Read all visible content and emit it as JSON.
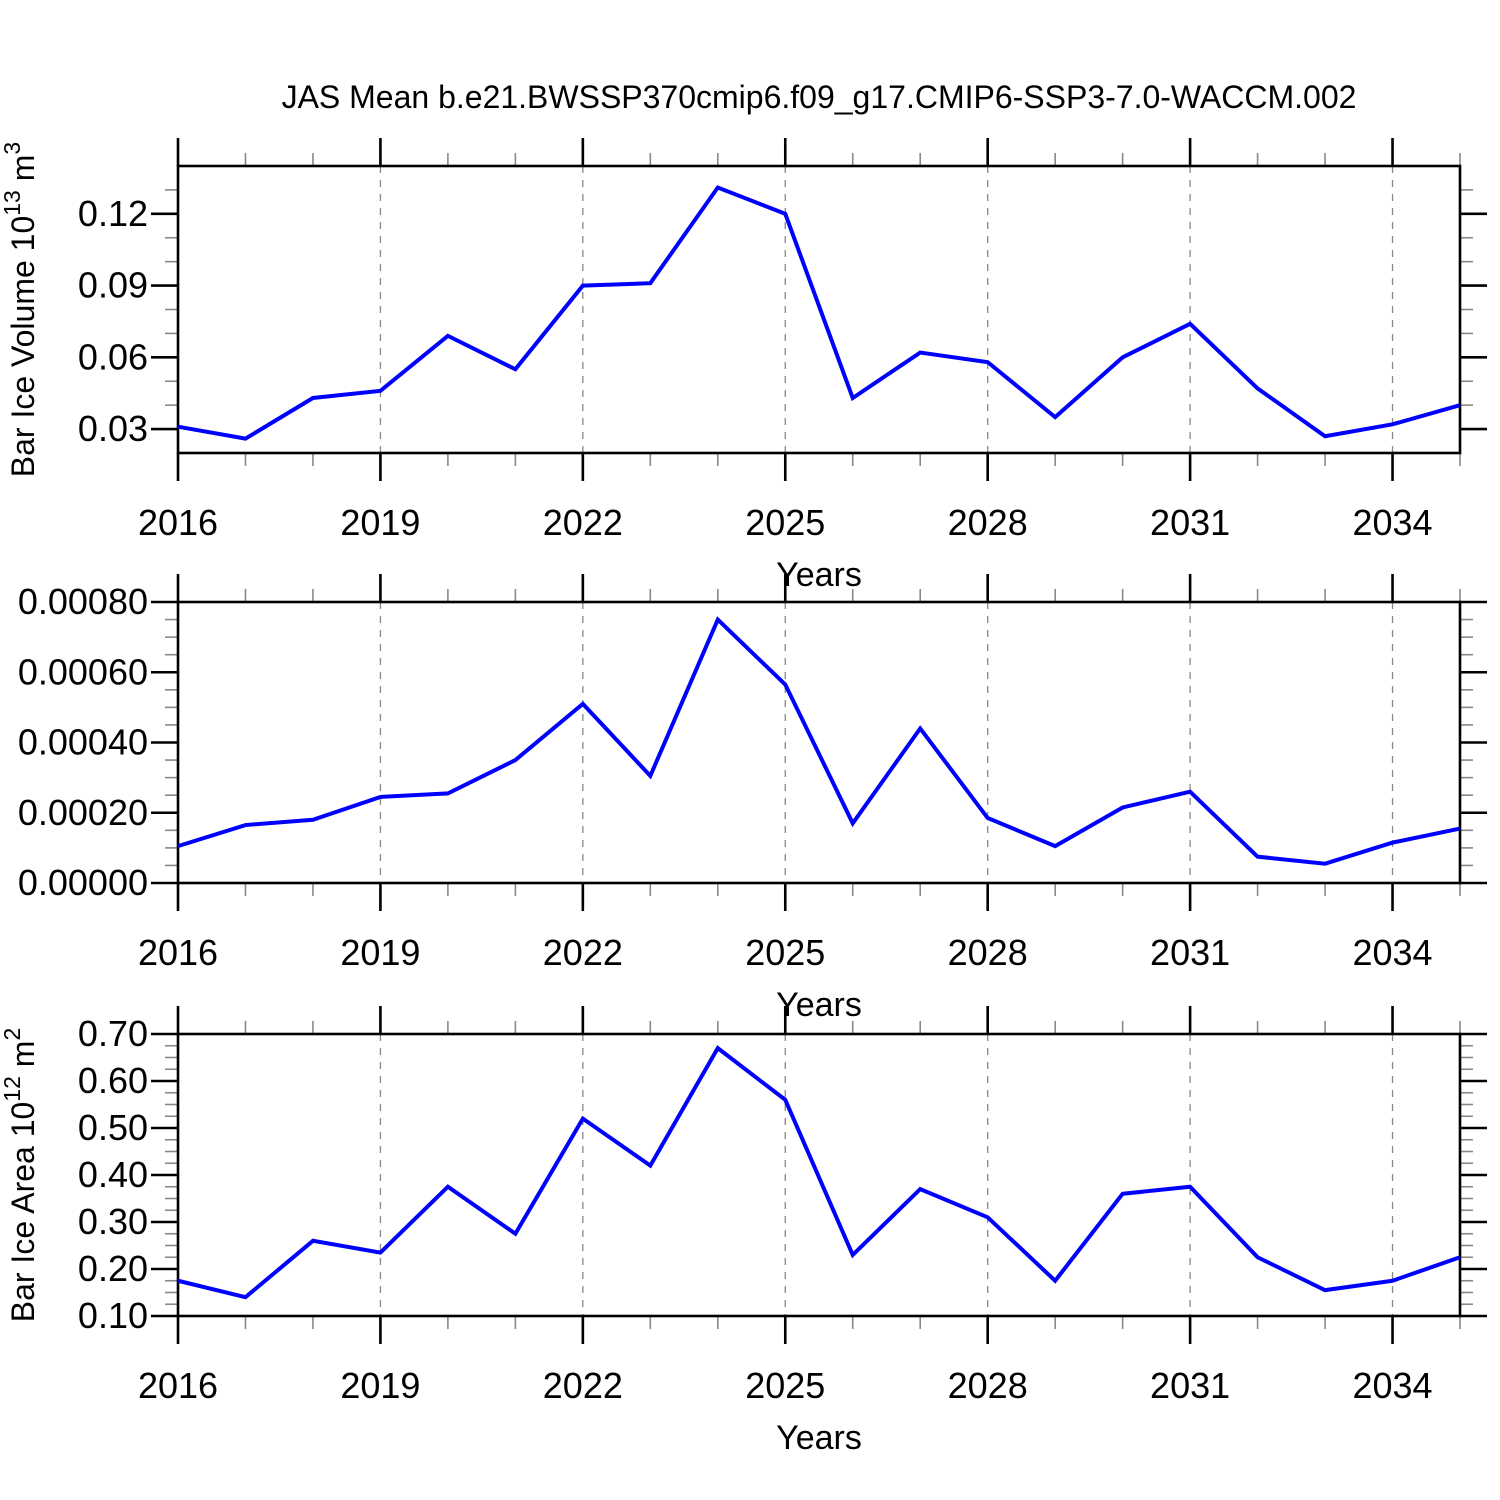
{
  "page_title": "JAS Mean b.e21.BWSSP370cmip6.f09_g17.CMIP6-SSP3-7.0-WACCM.002",
  "line_color": "#0000ff",
  "axis_color": "#000000",
  "minor_tick_color": "#888888",
  "grid_color": "#888888",
  "background_color": "#ffffff",
  "chart_data": [
    {
      "type": "line",
      "title": "",
      "ylabel": "Bar Ice Volume 10¹³ m³",
      "ylabel_parts": [
        [
          "Bar Ice Volume 10",
          false
        ],
        [
          "13",
          true
        ],
        [
          " m",
          false
        ],
        [
          "3",
          true
        ]
      ],
      "xlabel": "Years",
      "x": [
        2016,
        2017,
        2018,
        2019,
        2020,
        2021,
        2022,
        2023,
        2024,
        2025,
        2026,
        2027,
        2028,
        2029,
        2030,
        2031,
        2032,
        2033,
        2034,
        2035
      ],
      "values": [
        0.031,
        0.026,
        0.043,
        0.046,
        0.069,
        0.055,
        0.09,
        0.091,
        0.131,
        0.12,
        0.043,
        0.062,
        0.058,
        0.035,
        0.06,
        0.074,
        0.047,
        0.027,
        0.032,
        0.04
      ],
      "xlim": [
        2016,
        2035
      ],
      "ylim": [
        0.02,
        0.14
      ],
      "xticks": {
        "values": [
          2016,
          2019,
          2022,
          2025,
          2028,
          2031,
          2034
        ],
        "labels": [
          "2016",
          "2019",
          "2022",
          "2025",
          "2028",
          "2031",
          "2034"
        ],
        "minor_step": 1
      },
      "yticks": {
        "values": [
          0.03,
          0.06,
          0.09,
          0.12
        ],
        "labels": [
          "0.03",
          "0.06",
          "0.09",
          "0.12"
        ],
        "minor_step": 0.01
      },
      "grid_x": [
        2019,
        2022,
        2025,
        2028,
        2031,
        2034
      ],
      "grid_style": "vertical-dashed",
      "legend": "none"
    },
    {
      "type": "line",
      "title": "",
      "ylabel": "",
      "ylabel_parts": [],
      "xlabel": "Years",
      "x": [
        2016,
        2017,
        2018,
        2019,
        2020,
        2021,
        2022,
        2023,
        2024,
        2025,
        2026,
        2027,
        2028,
        2029,
        2030,
        2031,
        2032,
        2033,
        2034,
        2035
      ],
      "values": [
        0.000105,
        0.000165,
        0.00018,
        0.000245,
        0.000255,
        0.00035,
        0.00051,
        0.000305,
        0.00075,
        0.000565,
        0.00017,
        0.00044,
        0.000185,
        0.000105,
        0.000215,
        0.00026,
        7.5e-05,
        5.5e-05,
        0.000115,
        0.000155
      ],
      "xlim": [
        2016,
        2035
      ],
      "ylim": [
        0.0,
        0.0008
      ],
      "xticks": {
        "values": [
          2016,
          2019,
          2022,
          2025,
          2028,
          2031,
          2034
        ],
        "labels": [
          "2016",
          "2019",
          "2022",
          "2025",
          "2028",
          "2031",
          "2034"
        ],
        "minor_step": 1
      },
      "yticks": {
        "values": [
          0.0,
          0.0002,
          0.0004,
          0.0006,
          0.0008
        ],
        "labels": [
          "0.00000",
          "0.00020",
          "0.00040",
          "0.00060",
          "0.00080"
        ],
        "minor_step": 5e-05
      },
      "grid_x": [
        2019,
        2022,
        2025,
        2028,
        2031,
        2034
      ],
      "grid_style": "vertical-dashed",
      "legend": "none"
    },
    {
      "type": "line",
      "title": "",
      "ylabel": "Bar Ice Area 10¹² m²",
      "ylabel_parts": [
        [
          "Bar Ice Area 10",
          false
        ],
        [
          "12",
          true
        ],
        [
          " m",
          false
        ],
        [
          "2",
          true
        ]
      ],
      "xlabel": "Years",
      "x": [
        2016,
        2017,
        2018,
        2019,
        2020,
        2021,
        2022,
        2023,
        2024,
        2025,
        2026,
        2027,
        2028,
        2029,
        2030,
        2031,
        2032,
        2033,
        2034,
        2035
      ],
      "values": [
        0.175,
        0.14,
        0.26,
        0.235,
        0.375,
        0.275,
        0.52,
        0.42,
        0.67,
        0.56,
        0.23,
        0.37,
        0.31,
        0.175,
        0.36,
        0.375,
        0.225,
        0.155,
        0.175,
        0.225
      ],
      "xlim": [
        2016,
        2035
      ],
      "ylim": [
        0.1,
        0.7
      ],
      "xticks": {
        "values": [
          2016,
          2019,
          2022,
          2025,
          2028,
          2031,
          2034
        ],
        "labels": [
          "2016",
          "2019",
          "2022",
          "2025",
          "2028",
          "2031",
          "2034"
        ],
        "minor_step": 1
      },
      "yticks": {
        "values": [
          0.1,
          0.2,
          0.3,
          0.4,
          0.5,
          0.6,
          0.7
        ],
        "labels": [
          "0.10",
          "0.20",
          "0.30",
          "0.40",
          "0.50",
          "0.60",
          "0.70"
        ],
        "minor_step": 0.025
      },
      "grid_x": [
        2019,
        2022,
        2025,
        2028,
        2031,
        2034
      ],
      "grid_style": "vertical-dashed",
      "legend": "none"
    }
  ]
}
